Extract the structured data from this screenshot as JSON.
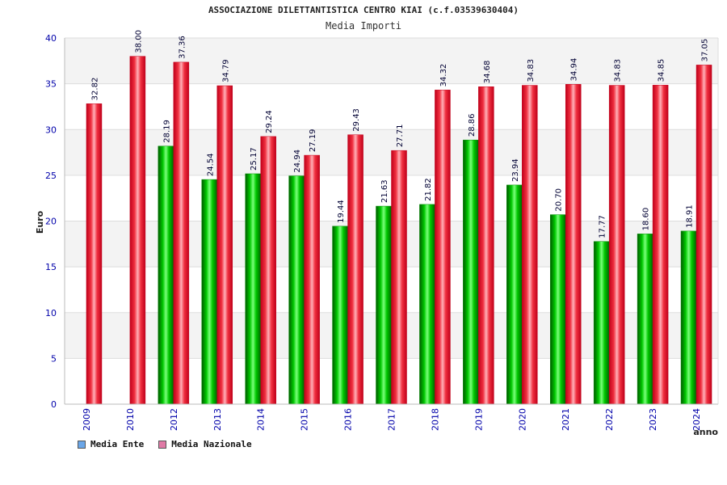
{
  "chart_data": {
    "type": "bar",
    "title": "ASSOCIAZIONE DILETTANTISTICA CENTRO KIAI (c.f.03539630404)",
    "subtitle": "Media Importi",
    "xlabel": "anno",
    "ylabel": "Euro",
    "ylim": [
      0,
      40
    ],
    "yticks": [
      0,
      5,
      10,
      15,
      20,
      25,
      30,
      35,
      40
    ],
    "categories": [
      "2009",
      "2010",
      "2012",
      "2013",
      "2014",
      "2015",
      "2016",
      "2017",
      "2018",
      "2019",
      "2020",
      "2021",
      "2022",
      "2023",
      "2024"
    ],
    "series": [
      {
        "name": "Media Ente",
        "color": "#00b400",
        "values": [
          null,
          null,
          28.19,
          24.54,
          25.17,
          24.94,
          19.44,
          21.63,
          21.82,
          28.86,
          23.94,
          20.7,
          17.77,
          18.6,
          18.91
        ],
        "labels": [
          "",
          "",
          "28.19",
          "24.54",
          "25.17",
          "24.94",
          "19.44",
          "21.63",
          "21.82",
          "28.86",
          "23.94",
          "20.70",
          "17.77",
          "18.60",
          "18.91"
        ]
      },
      {
        "name": "Media Nazionale",
        "color": "#e8182a",
        "values": [
          32.82,
          38.0,
          37.36,
          34.79,
          29.24,
          27.19,
          29.43,
          27.71,
          34.32,
          34.68,
          34.83,
          34.94,
          34.83,
          34.85,
          37.05
        ],
        "labels": [
          "32.82",
          "38.00",
          "37.36",
          "34.79",
          "29.24",
          "27.19",
          "29.43",
          "27.71",
          "34.32",
          "34.68",
          "34.83",
          "34.94",
          "34.83",
          "34.85",
          "37.05"
        ]
      }
    ],
    "grid": true,
    "legend_position": "bottom-left",
    "legend_swatches": [
      "#6aa6e8",
      "#e07aa6"
    ]
  }
}
